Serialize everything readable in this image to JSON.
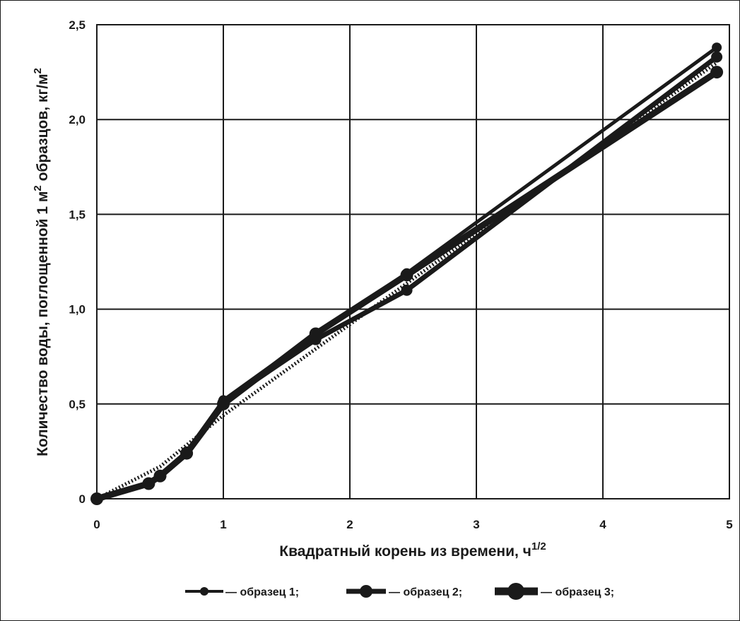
{
  "chart_data": {
    "type": "line",
    "xlabel": "Квадратный корень из времени, ч",
    "xlabel_sup": "1/2",
    "ylabel_parts": [
      "Количество воды, поглощенной 1 м",
      "2",
      " образцов, кг/м",
      "2"
    ],
    "x_ticks": [
      "0",
      "1",
      "2",
      "3",
      "4",
      "5"
    ],
    "y_ticks": [
      "0",
      "0,5",
      "1,0",
      "1,5",
      "2,0",
      "2,5"
    ],
    "xlim": [
      0,
      5
    ],
    "ylim": [
      0,
      2.5
    ],
    "grid": true,
    "legend_position": "bottom",
    "series": [
      {
        "name": "— образец 1;",
        "x": [
          0,
          0.41,
          0.5,
          0.71,
          1.0,
          1.73,
          2.45,
          4.9
        ],
        "y": [
          0,
          0.08,
          0.12,
          0.25,
          0.52,
          0.87,
          1.19,
          2.38
        ]
      },
      {
        "name": "— образец 2;",
        "x": [
          0,
          0.41,
          0.5,
          0.71,
          1.0,
          1.73,
          2.45,
          4.9
        ],
        "y": [
          0,
          0.08,
          0.12,
          0.24,
          0.51,
          0.84,
          1.1,
          2.33
        ]
      },
      {
        "name": "— образец 3;",
        "x": [
          0,
          0.41,
          0.5,
          0.71,
          1.0,
          1.73,
          2.45,
          4.9
        ],
        "y": [
          0,
          0.08,
          0.12,
          0.24,
          0.5,
          0.87,
          1.18,
          2.25
        ]
      }
    ],
    "trend_line": {
      "style": "dotted",
      "x": [
        0,
        0.5,
        1.0,
        2.0,
        3.0,
        4.0,
        4.9
      ],
      "y": [
        0,
        0.17,
        0.44,
        0.92,
        1.4,
        1.87,
        2.3
      ]
    },
    "colors": {
      "lines": "#1a1a1a",
      "grid": "#1a1a1a",
      "background": "#ffffff"
    }
  }
}
